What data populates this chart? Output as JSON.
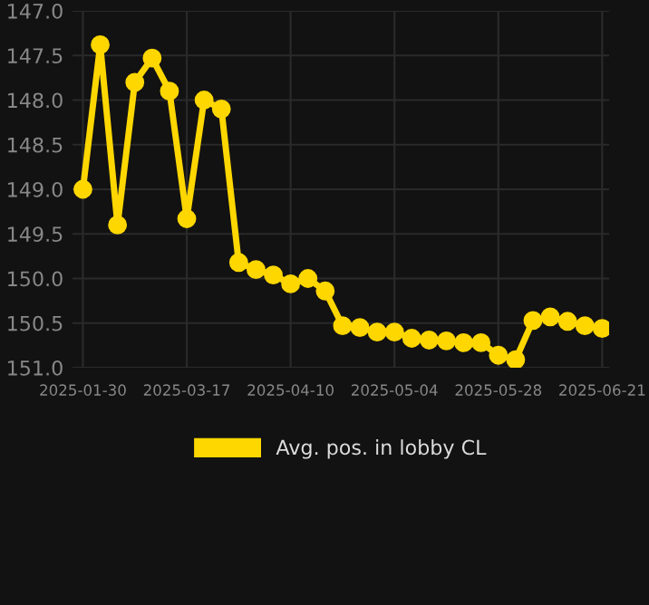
{
  "chart_data": {
    "type": "line",
    "categories": [
      "2025-01-30",
      null,
      null,
      null,
      null,
      null,
      "2025-03-17",
      null,
      null,
      null,
      null,
      null,
      "2025-04-10",
      null,
      null,
      null,
      null,
      null,
      "2025-05-04",
      null,
      null,
      null,
      null,
      null,
      "2025-05-28",
      null,
      null,
      null,
      null,
      null,
      "2025-06-21"
    ],
    "series": [
      {
        "name": "Avg. pos. in lobby CL",
        "color": "#ffd700",
        "values": [
          149.0,
          147.38,
          149.4,
          147.8,
          147.53,
          147.9,
          149.33,
          148.0,
          148.1,
          149.82,
          149.9,
          149.96,
          150.06,
          150.0,
          150.14,
          150.53,
          150.55,
          150.6,
          150.6,
          150.67,
          150.69,
          150.7,
          150.72,
          150.72,
          150.86,
          150.91,
          150.47,
          150.43,
          150.48,
          150.53,
          150.56
        ]
      }
    ],
    "ylim": [
      151.0,
      147.0
    ],
    "yticks": [
      {
        "value": 147.0,
        "label": "147.0"
      },
      {
        "value": 147.5,
        "label": "147.5"
      },
      {
        "value": 148.0,
        "label": "148.0"
      },
      {
        "value": 148.5,
        "label": "148.5"
      },
      {
        "value": 149.0,
        "label": "149.0"
      },
      {
        "value": 149.5,
        "label": "149.5"
      },
      {
        "value": 150.0,
        "label": "150.0"
      },
      {
        "value": 150.5,
        "label": "150.5"
      },
      {
        "value": 151.0,
        "label": "151.0"
      }
    ],
    "grid": true,
    "legend": "bottom",
    "marker": "circle",
    "line_style": "solid"
  }
}
